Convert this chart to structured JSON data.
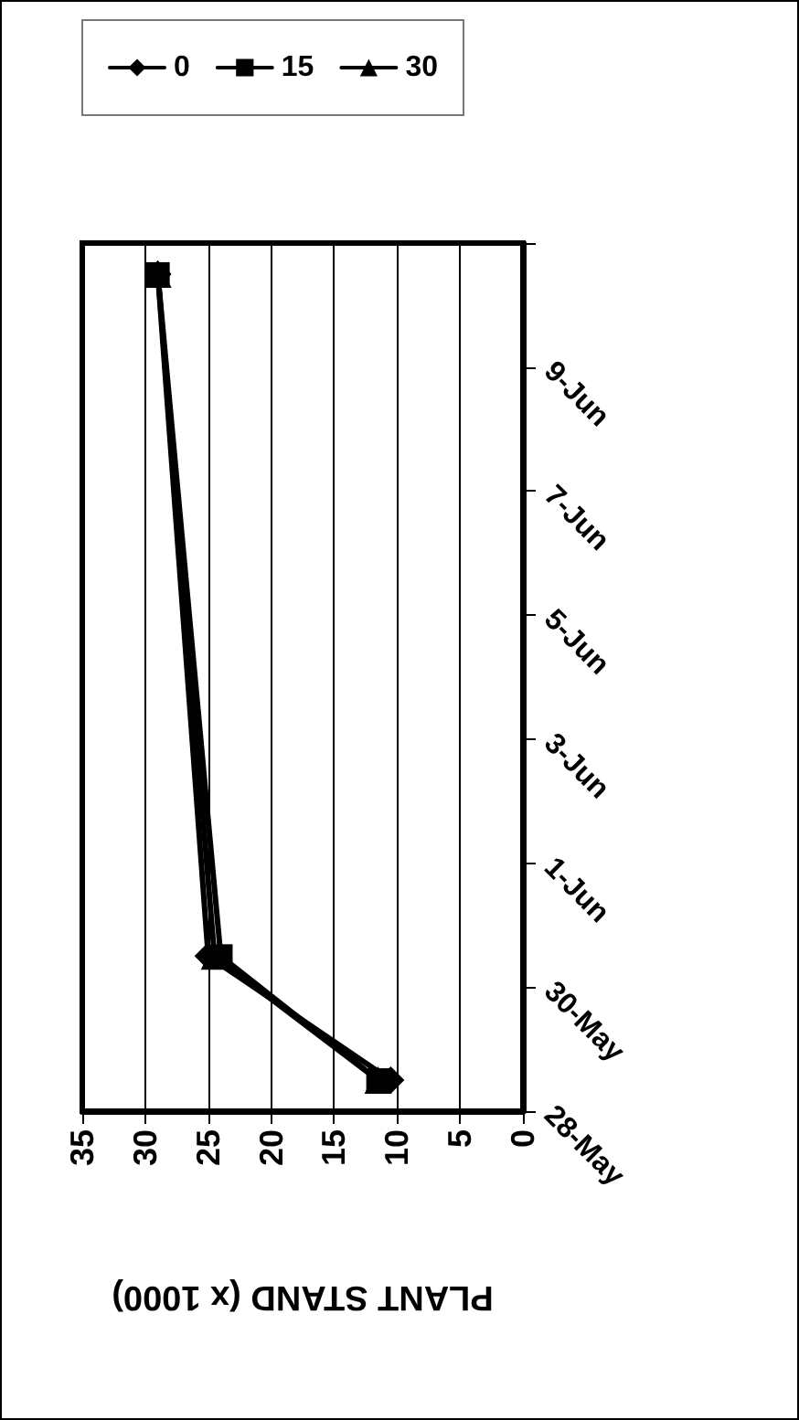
{
  "chart_data": {
    "type": "line",
    "orientation": "horizontal",
    "xlabel": "PLANT STAND (x 1000)",
    "xlim": [
      35,
      0
    ],
    "xticks": [
      35,
      30,
      25,
      20,
      15,
      10,
      5,
      0
    ],
    "ylim": [
      "--05-28",
      "--06-11"
    ],
    "yticks": [
      {
        "value": "--05-28",
        "label": "28-May"
      },
      {
        "value": "--05-30",
        "label": "30-May"
      },
      {
        "value": "--06-01",
        "label": "1-Jun"
      },
      {
        "value": "--06-03",
        "label": "3-Jun"
      },
      {
        "value": "--06-05",
        "label": "5-Jun"
      },
      {
        "value": "--06-07",
        "label": "7-Jun"
      },
      {
        "value": "--06-09",
        "label": "9-Jun"
      },
      {
        "value": "--06-11",
        "label": null
      }
    ],
    "x": [
      "--05-28T12:00",
      "--05-30T12:00",
      "--06-10T12:00"
    ],
    "grid": "x",
    "legend": "top left",
    "line_style": "solid",
    "series": [
      {
        "name": "0",
        "color": "#000000",
        "marker": "diamond",
        "values": [
          10.5,
          25,
          29
        ]
      },
      {
        "name": "15",
        "color": "#000000",
        "marker": "square",
        "values": [
          11.5,
          24,
          29
        ]
      },
      {
        "name": "30",
        "color": "#000000",
        "marker": "triangle",
        "values": [
          11.5,
          24.5,
          29
        ]
      }
    ]
  }
}
